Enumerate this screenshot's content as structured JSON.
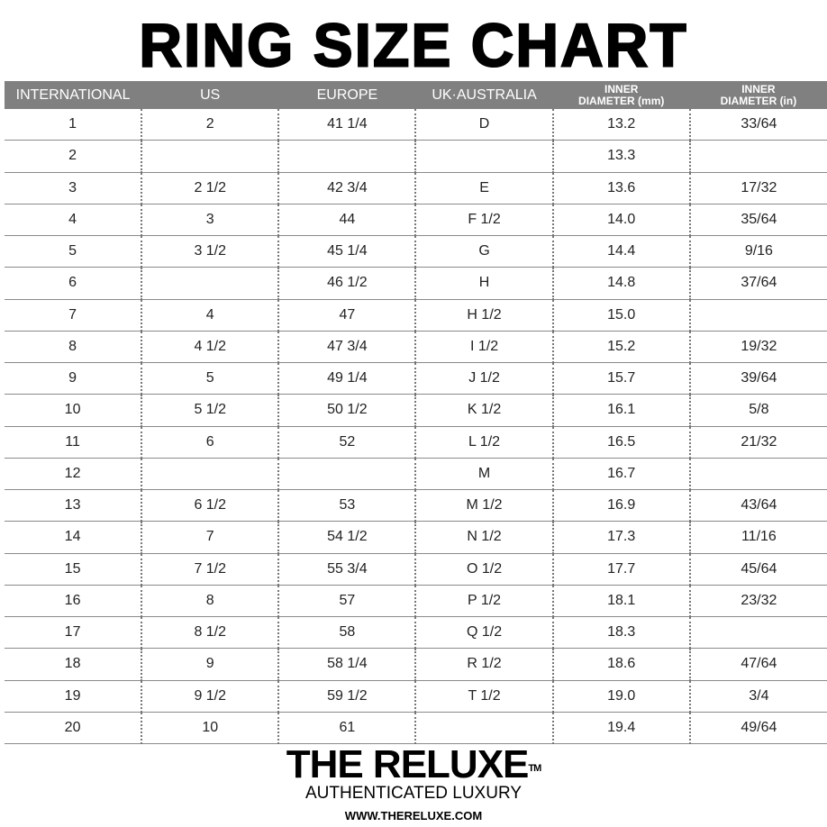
{
  "title": "RING SIZE CHART",
  "columns": [
    "INTERNATIONAL",
    "US",
    "EUROPE",
    "UK·AUSTRALIA",
    [
      "INNER",
      "DIAMETER (mm)"
    ],
    [
      "INNER",
      "DIAMETER (in)"
    ]
  ],
  "rows": [
    [
      "1",
      "2",
      "41 1/4",
      "D",
      "13.2",
      "33/64"
    ],
    [
      "2",
      "",
      "",
      "",
      "13.3",
      ""
    ],
    [
      "3",
      "2 1/2",
      "42 3/4",
      "E",
      "13.6",
      "17/32"
    ],
    [
      "4",
      "3",
      "44",
      "F 1/2",
      "14.0",
      "35/64"
    ],
    [
      "5",
      "3 1/2",
      "45 1/4",
      "G",
      "14.4",
      "9/16"
    ],
    [
      "6",
      "",
      "46 1/2",
      "H",
      "14.8",
      "37/64"
    ],
    [
      "7",
      "4",
      "47",
      "H 1/2",
      "15.0",
      ""
    ],
    [
      "8",
      "4 1/2",
      "47 3/4",
      "I 1/2",
      "15.2",
      "19/32"
    ],
    [
      "9",
      "5",
      "49 1/4",
      "J 1/2",
      "15.7",
      "39/64"
    ],
    [
      "10",
      "5 1/2",
      "50 1/2",
      "K 1/2",
      "16.1",
      "5/8"
    ],
    [
      "11",
      "6",
      "52",
      "L 1/2",
      "16.5",
      "21/32"
    ],
    [
      "12",
      "",
      "",
      "M",
      "16.7",
      ""
    ],
    [
      "13",
      "6 1/2",
      "53",
      "M 1/2",
      "16.9",
      "43/64"
    ],
    [
      "14",
      "7",
      "54 1/2",
      "N 1/2",
      "17.3",
      "11/16"
    ],
    [
      "15",
      "7 1/2",
      "55 3/4",
      "O 1/2",
      "17.7",
      "45/64"
    ],
    [
      "16",
      "8",
      "57",
      "P 1/2",
      "18.1",
      "23/32"
    ],
    [
      "17",
      "8 1/2",
      "58",
      "Q 1/2",
      "18.3",
      ""
    ],
    [
      "18",
      "9",
      "58 1/4",
      "R 1/2",
      "18.6",
      "47/64"
    ],
    [
      "19",
      "9 1/2",
      "59 1/2",
      "T 1/2",
      "19.0",
      "3/4"
    ],
    [
      "20",
      "10",
      "61",
      "",
      "19.4",
      "49/64"
    ]
  ],
  "brand": {
    "name": "THE RELUXE",
    "tm": "TM",
    "tagline": "AUTHENTICATED LUXURY",
    "url": "WWW.THERELUXE.COM"
  },
  "colors": {
    "header_bg": "#808080",
    "header_text": "#ffffff"
  }
}
